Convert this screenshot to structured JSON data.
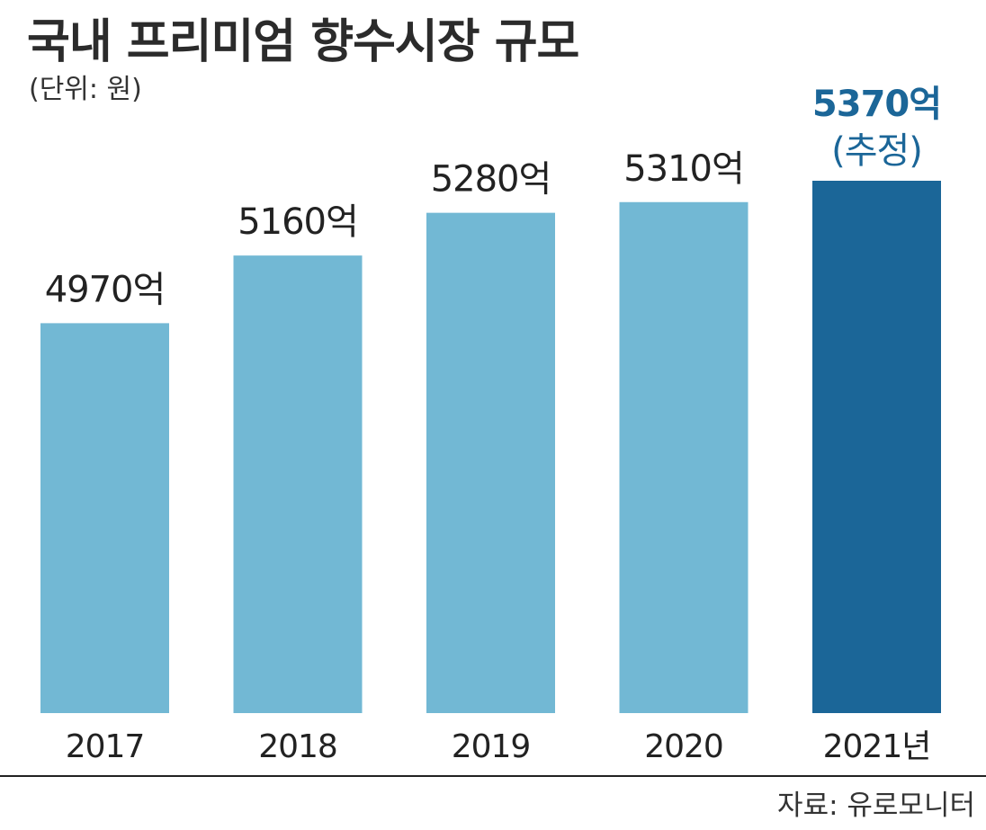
{
  "header": {
    "title": "국내 프리미엄 향수시장 규모",
    "unit": "(단위: 원)"
  },
  "footer": {
    "source": "자료: 유로모니터"
  },
  "colors": {
    "bar": "#72b8d4",
    "highlight_bar": "#1b6698",
    "label": "#222222",
    "highlight_label": "#1b6698"
  },
  "chart_data": {
    "type": "bar",
    "title": "국내 프리미엄 향수시장 규모",
    "unit": "(단위: 원)",
    "categories": [
      "2017",
      "2018",
      "2019",
      "2020",
      "2021년"
    ],
    "values": [
      4970,
      5160,
      5280,
      5310,
      5370
    ],
    "value_labels": [
      "4970억",
      "5160억",
      "5280억",
      "5310억",
      "5370억"
    ],
    "annotations": [
      "",
      "",
      "",
      "",
      "(추정)"
    ],
    "highlight_index": 4,
    "ylim": [
      3875,
      5370
    ],
    "grid": false,
    "legend": "none",
    "source": "자료: 유로모니터"
  }
}
